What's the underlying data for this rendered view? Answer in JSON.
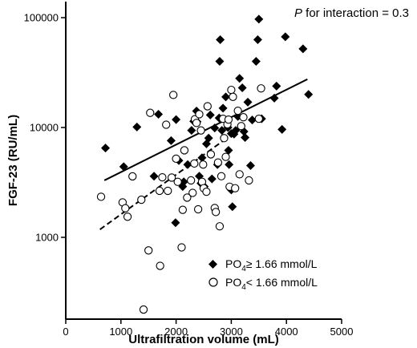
{
  "chart_data": {
    "type": "scatter",
    "xlabel": "Ultrafiltration volume (mL)",
    "ylabel": "FGF-23 (RU/mL)",
    "annotation": {
      "italic": "P",
      "text": " for interaction = 0.3"
    },
    "xlim": [
      0,
      5000
    ],
    "ylim": [
      180,
      140000
    ],
    "yscale": "log",
    "xticks": [
      0,
      1000,
      2000,
      3000,
      4000,
      5000
    ],
    "yticks": [
      1000,
      10000,
      100000
    ],
    "ytick_labels": [
      "1000",
      "10000",
      "100000"
    ],
    "legend_position": "bottom-right",
    "series": [
      {
        "name": "PO4≥ 1.66 mmol/L",
        "legend": {
          "prefix": "PO",
          "sub": "4",
          "suffix": "≥ 1.66 mmol/L"
        },
        "marker": "filled-diamond",
        "color": "#000000",
        "points": [
          [
            720,
            6500
          ],
          [
            1050,
            4400
          ],
          [
            1290,
            10100
          ],
          [
            1600,
            3600
          ],
          [
            1680,
            13200
          ],
          [
            1910,
            7600
          ],
          [
            1990,
            1360
          ],
          [
            2000,
            11800
          ],
          [
            2050,
            5000
          ],
          [
            2120,
            2900
          ],
          [
            2140,
            3200
          ],
          [
            2210,
            4600
          ],
          [
            2280,
            9400
          ],
          [
            2320,
            11400
          ],
          [
            2370,
            14100
          ],
          [
            2380,
            11300
          ],
          [
            2420,
            3600
          ],
          [
            2450,
            3100
          ],
          [
            2470,
            5300
          ],
          [
            2510,
            2900
          ],
          [
            2550,
            7100
          ],
          [
            2590,
            8000
          ],
          [
            2620,
            13000
          ],
          [
            2650,
            3400
          ],
          [
            2700,
            9900
          ],
          [
            2750,
            4600
          ],
          [
            2780,
            12200
          ],
          [
            2790,
            40000
          ],
          [
            2800,
            63000
          ],
          [
            2830,
            9400
          ],
          [
            2850,
            15000
          ],
          [
            2900,
            19000
          ],
          [
            2940,
            10000
          ],
          [
            2950,
            6200
          ],
          [
            3000,
            8800
          ],
          [
            2960,
            4600
          ],
          [
            3000,
            2700
          ],
          [
            3020,
            1900
          ],
          [
            3050,
            8700
          ],
          [
            3080,
            9400
          ],
          [
            3120,
            12600
          ],
          [
            3150,
            28000
          ],
          [
            3200,
            23000
          ],
          [
            3230,
            9200
          ],
          [
            3250,
            8100
          ],
          [
            3300,
            17000
          ],
          [
            3350,
            4500
          ],
          [
            3380,
            11700
          ],
          [
            3450,
            40000
          ],
          [
            3480,
            63000
          ],
          [
            3500,
            97000
          ],
          [
            3550,
            12000
          ],
          [
            3780,
            18500
          ],
          [
            3820,
            23800
          ],
          [
            3920,
            9600
          ],
          [
            3980,
            67000
          ],
          [
            4300,
            52000
          ],
          [
            4400,
            20000
          ]
        ]
      },
      {
        "name": "PO4< 1.66 mmol/L",
        "legend": {
          "prefix": "PO",
          "sub": "4",
          "suffix": "< 1.66 mmol/L"
        },
        "marker": "open-circle",
        "color": "#000000",
        "points": [
          [
            640,
            2340
          ],
          [
            1030,
            2080
          ],
          [
            1080,
            1840
          ],
          [
            1120,
            1540
          ],
          [
            1210,
            3590
          ],
          [
            1370,
            2200
          ],
          [
            1410,
            220
          ],
          [
            1500,
            760
          ],
          [
            1530,
            13600
          ],
          [
            1700,
            2650
          ],
          [
            1710,
            550
          ],
          [
            1750,
            3520
          ],
          [
            1820,
            10600
          ],
          [
            1850,
            2650
          ],
          [
            1920,
            3500
          ],
          [
            1950,
            19800
          ],
          [
            2000,
            5200
          ],
          [
            2030,
            3200
          ],
          [
            2100,
            810
          ],
          [
            2120,
            1780
          ],
          [
            2150,
            6200
          ],
          [
            2200,
            2300
          ],
          [
            2270,
            3300
          ],
          [
            2300,
            2540
          ],
          [
            2330,
            4700
          ],
          [
            2340,
            11900
          ],
          [
            2370,
            11000
          ],
          [
            2400,
            1800
          ],
          [
            2420,
            13200
          ],
          [
            2450,
            9400
          ],
          [
            2470,
            3200
          ],
          [
            2490,
            4600
          ],
          [
            2500,
            2800
          ],
          [
            2550,
            2600
          ],
          [
            2570,
            15600
          ],
          [
            2630,
            5700
          ],
          [
            2700,
            1850
          ],
          [
            2720,
            1700
          ],
          [
            2760,
            4800
          ],
          [
            2790,
            1260
          ],
          [
            2820,
            3600
          ],
          [
            2850,
            12000
          ],
          [
            2870,
            8000
          ],
          [
            2900,
            5400
          ],
          [
            2930,
            10700
          ],
          [
            2950,
            11800
          ],
          [
            2970,
            2890
          ],
          [
            3000,
            22000
          ],
          [
            3030,
            19000
          ],
          [
            3070,
            2800
          ],
          [
            3120,
            14200
          ],
          [
            3150,
            3750
          ],
          [
            3180,
            10300
          ],
          [
            3220,
            12400
          ],
          [
            3320,
            3300
          ],
          [
            3500,
            12000
          ],
          [
            3540,
            22700
          ]
        ]
      }
    ],
    "regression_lines": [
      {
        "series": "PO4≥ 1.66 mmol/L",
        "style": "solid",
        "x": [
          700,
          4380
        ],
        "y": [
          3300,
          27500
        ]
      },
      {
        "series": "PO4< 1.66 mmol/L",
        "style": "dashed",
        "x": [
          620,
          2950
        ],
        "y": [
          1180,
          8200
        ]
      }
    ]
  }
}
